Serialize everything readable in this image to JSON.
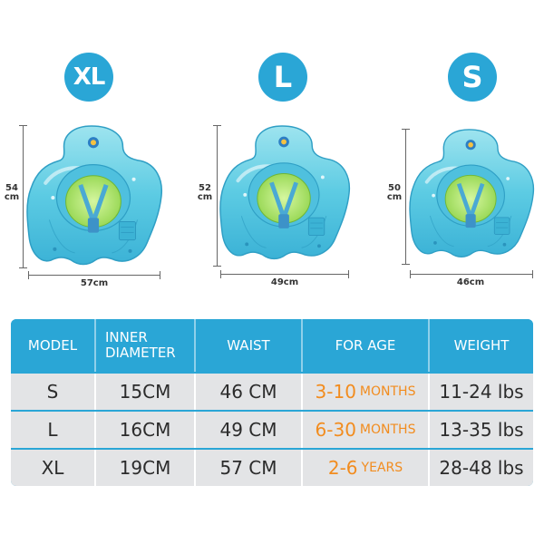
{
  "badges": {
    "xl": "XL",
    "l": "L",
    "s": "S"
  },
  "dimensions": {
    "xl": {
      "height_value": "54",
      "height_unit": "cm",
      "width": "57cm"
    },
    "l": {
      "height_value": "52",
      "height_unit": "cm",
      "width": "49cm"
    },
    "s": {
      "height_value": "50",
      "height_unit": "cm",
      "width": "46cm"
    }
  },
  "table": {
    "headers": {
      "model": "MODEL",
      "inner_line1": "INNER",
      "inner_line2": "DIAMETER",
      "waist": "WAIST",
      "for_age": "FOR AGE",
      "weight": "WEIGHT"
    },
    "rows": [
      {
        "model": "S",
        "inner": "15CM",
        "waist": "46 CM",
        "age_num": "3-10",
        "age_unit": "MONTHS",
        "weight": "11-24 lbs"
      },
      {
        "model": "L",
        "inner": "16CM",
        "waist": "49 CM",
        "age_num": "6-30",
        "age_unit": "MONTHS",
        "weight": "13-35 lbs"
      },
      {
        "model": "XL",
        "inner": "19CM",
        "waist": "57 CM",
        "age_num": "2-6",
        "age_unit": "YEARS",
        "weight": "28-48 lbs"
      }
    ]
  },
  "colors": {
    "accent_blue": "#2aa6d6",
    "age_orange": "#f28c1e",
    "row_gray": "#e3e4e6"
  }
}
